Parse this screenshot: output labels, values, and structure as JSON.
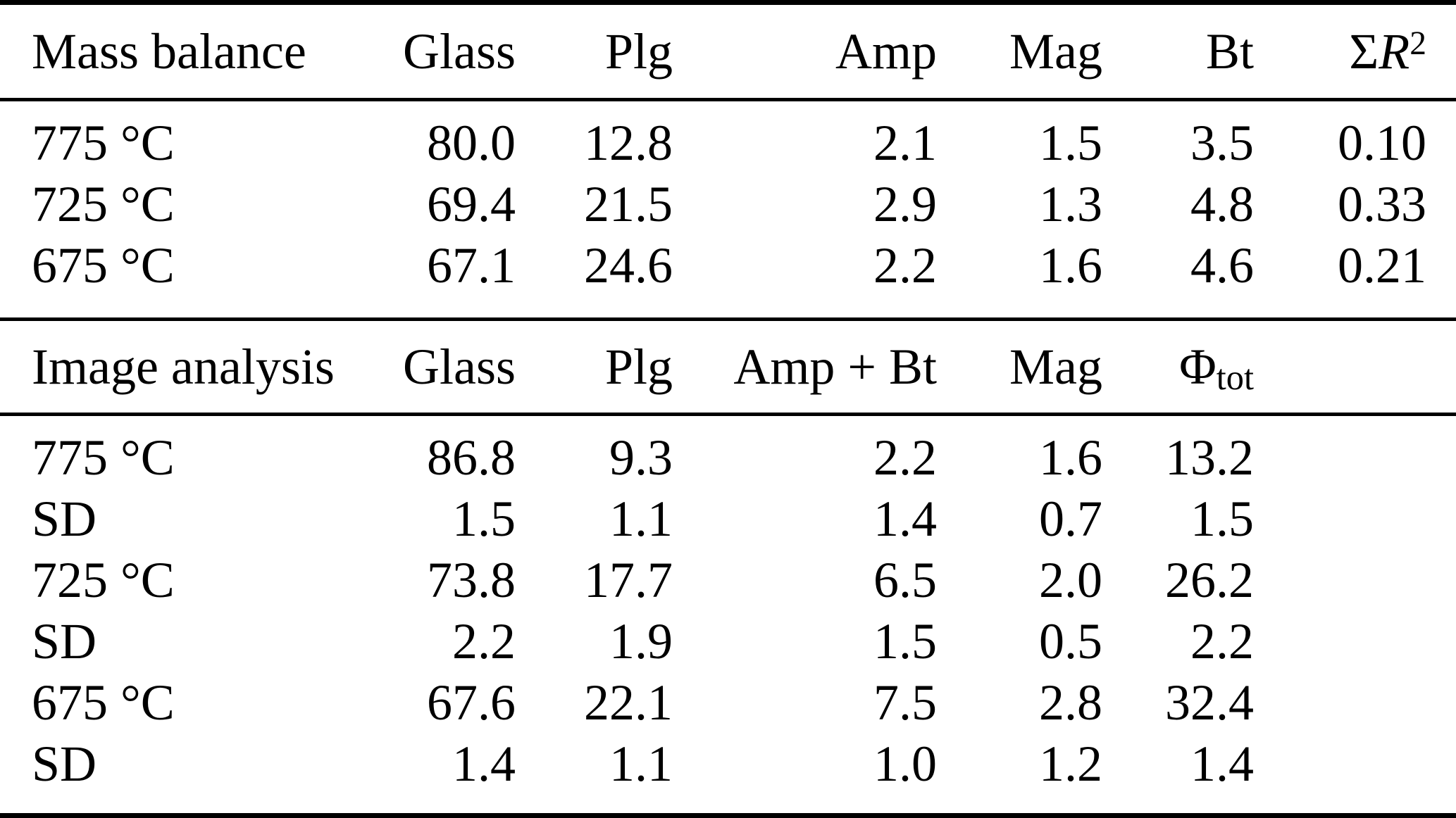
{
  "table": {
    "section1": {
      "header": {
        "col1": "Mass balance",
        "col2": "Glass",
        "col3": "Plg",
        "col4": "Amp",
        "col5": "Mag",
        "col6": "Bt",
        "col7_sigma": "Σ",
        "col7_r": "R",
        "col7_exp": "2"
      },
      "rows": [
        {
          "label": "775 °C",
          "values": [
            "80.0",
            "12.8",
            "2.1",
            "1.5",
            "3.5",
            "0.10"
          ]
        },
        {
          "label": "725 °C",
          "values": [
            "69.4",
            "21.5",
            "2.9",
            "1.3",
            "4.8",
            "0.33"
          ]
        },
        {
          "label": "675 °C",
          "values": [
            "67.1",
            "24.6",
            "2.2",
            "1.6",
            "4.6",
            "0.21"
          ]
        }
      ]
    },
    "section2": {
      "header": {
        "col1": "Image analysis",
        "col2": "Glass",
        "col3": "Plg",
        "col4": "Amp + Bt",
        "col5": "Mag",
        "col6_phi": "Φ",
        "col6_sub": "tot",
        "col7": ""
      },
      "rows": [
        {
          "label": "775 °C",
          "values": [
            "86.8",
            "9.3",
            "2.2",
            "1.6",
            "13.2",
            ""
          ]
        },
        {
          "label": "SD",
          "values": [
            "1.5",
            "1.1",
            "1.4",
            "0.7",
            "1.5",
            ""
          ]
        },
        {
          "label": "725 °C",
          "values": [
            "73.8",
            "17.7",
            "6.5",
            "2.0",
            "26.2",
            ""
          ]
        },
        {
          "label": "SD",
          "values": [
            "2.2",
            "1.9",
            "1.5",
            "0.5",
            "2.2",
            ""
          ]
        },
        {
          "label": "675 °C",
          "values": [
            "67.6",
            "22.1",
            "7.5",
            "2.8",
            "32.4",
            ""
          ]
        },
        {
          "label": "SD",
          "values": [
            "1.4",
            "1.1",
            "1.0",
            "1.2",
            "1.4",
            ""
          ]
        }
      ]
    }
  }
}
